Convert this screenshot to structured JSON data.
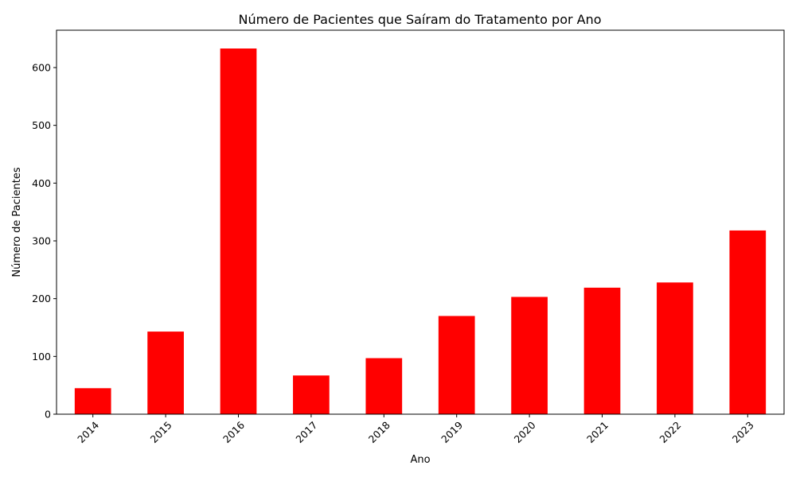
{
  "chart_data": {
    "type": "bar",
    "title": "Número de Pacientes que Saíram do Tratamento por Ano",
    "xlabel": "Ano",
    "ylabel": "Número de Pacientes",
    "categories": [
      "2014",
      "2015",
      "2016",
      "2017",
      "2018",
      "2019",
      "2020",
      "2021",
      "2022",
      "2023"
    ],
    "values": [
      45,
      143,
      633,
      67,
      97,
      170,
      203,
      219,
      228,
      318
    ],
    "ylim": [
      0,
      664.65
    ],
    "yticks": [
      0,
      100,
      200,
      300,
      400,
      500,
      600
    ],
    "bar_color": "#ff0000",
    "grid": false,
    "legend": "none"
  }
}
